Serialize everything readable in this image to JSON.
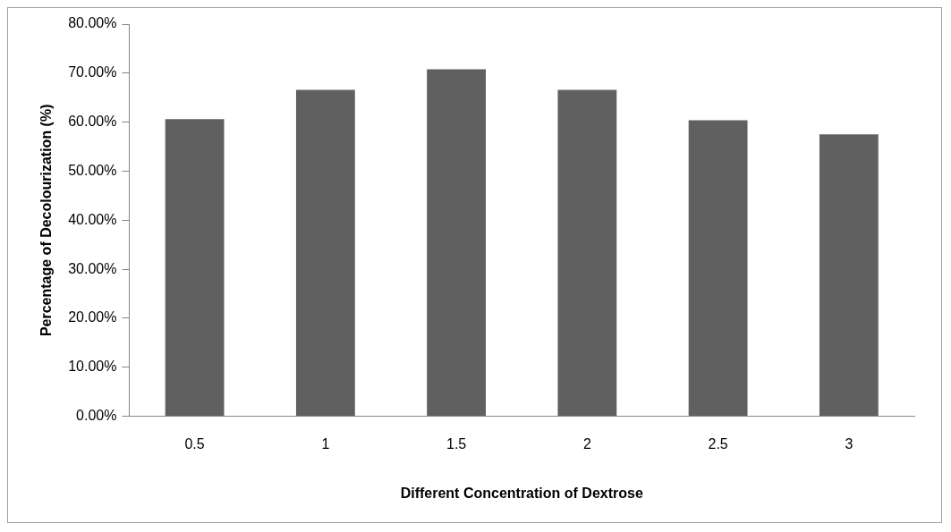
{
  "chart_data": {
    "type": "bar",
    "xlabel": "Different Concentration of Dextrose",
    "ylabel": "Percentage of Decolourization (%)",
    "categories": [
      "0.5",
      "1",
      "1.5",
      "2",
      "2.5",
      "3"
    ],
    "values": [
      60.6,
      66.6,
      70.8,
      66.6,
      60.4,
      57.5
    ],
    "color": "#606060",
    "ylim": [
      0,
      80
    ],
    "yticks": [
      {
        "value": 0,
        "label": "0.00%"
      },
      {
        "value": 10,
        "label": "10.00%"
      },
      {
        "value": 20,
        "label": "20.00%"
      },
      {
        "value": 30,
        "label": "30.00%"
      },
      {
        "value": 40,
        "label": "40.00%"
      },
      {
        "value": 50,
        "label": "50.00%"
      },
      {
        "value": 60,
        "label": "60.00%"
      },
      {
        "value": 70,
        "label": "70.00%"
      },
      {
        "value": 80,
        "label": "80.00%"
      }
    ],
    "grid": false,
    "legend": false
  }
}
